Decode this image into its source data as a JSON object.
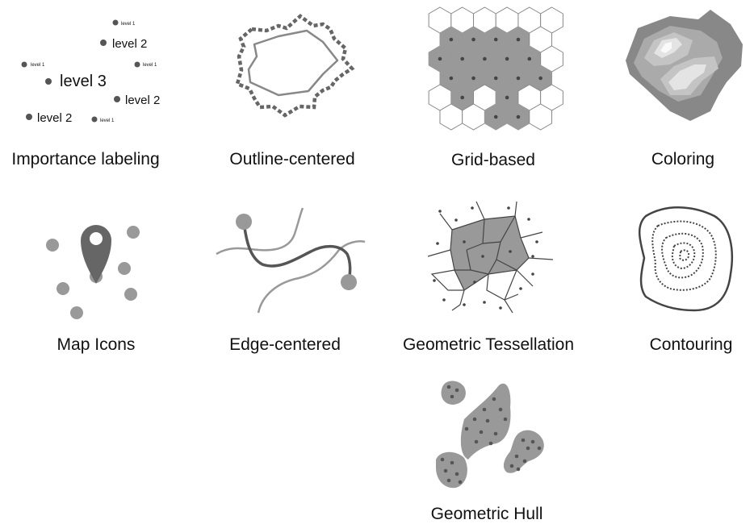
{
  "panels": [
    {
      "id": "importance",
      "caption": "Importance labeling",
      "labels": {
        "l1": "level 1",
        "l2": "level 2",
        "l3": "level 3"
      }
    },
    {
      "id": "outline",
      "caption": "Outline-centered"
    },
    {
      "id": "grid",
      "caption": "Grid-based"
    },
    {
      "id": "coloring",
      "caption": "Coloring"
    },
    {
      "id": "mapicons",
      "caption": "Map Icons"
    },
    {
      "id": "edge",
      "caption": "Edge-centered"
    },
    {
      "id": "tessellation",
      "caption": "Geometric Tessellation"
    },
    {
      "id": "contouring",
      "caption": "Contouring"
    },
    {
      "id": "hull",
      "caption": "Geometric Hull"
    }
  ],
  "colors": {
    "dark": "#555555",
    "mid": "#999999",
    "light": "#cccccc",
    "stroke": "#666666"
  }
}
